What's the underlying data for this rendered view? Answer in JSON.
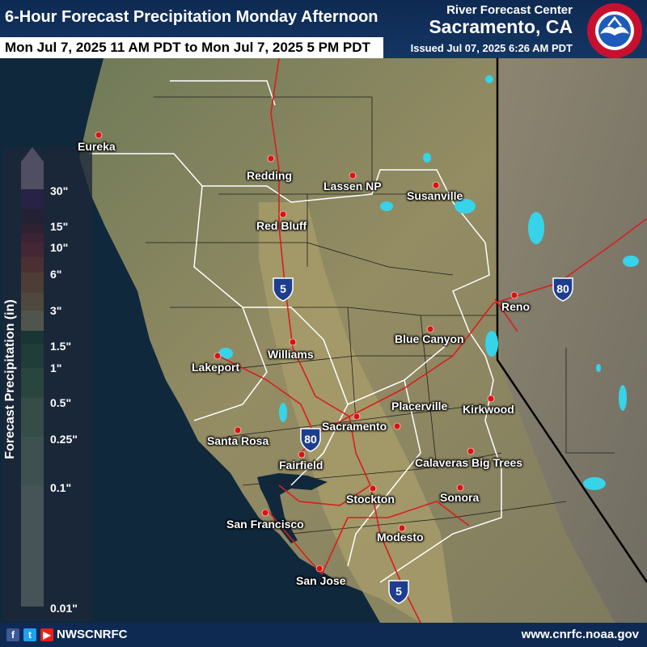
{
  "header": {
    "title": "6-Hour Forecast Precipitation Monday Afternoon",
    "valid_period": "Mon Jul 7, 2025 11 AM PDT to Mon Jul 7, 2025 5 PM PDT",
    "center_line1": "River Forecast Center",
    "center_line2": "Sacramento, CA",
    "issued": "Issued Jul 07, 2025 6:26 AM PDT",
    "logo_text": "NATIONAL WEATHER SERVICE"
  },
  "legend": {
    "title": "Forecast Precipitation (in)",
    "labels": [
      "30\"",
      "15\"",
      "10\"",
      "6\"",
      "3\"",
      "1.5\"",
      "1\"",
      "0.5\"",
      "0.25\"",
      "0.1\"",
      "0.01\""
    ],
    "colors": [
      "#fdd6f8",
      "#4b0f7a",
      "#3b0a2c",
      "#6e0a22",
      "#a4102a",
      "#d0202b",
      "#ef4a28",
      "#f88b2c",
      "#fbc14f",
      "#fdf59b",
      "#0f6b2b",
      "#2e8b3d",
      "#54ad55",
      "#8bcc80",
      "#b5e0a8",
      "#d4eec6"
    ],
    "max_value": null
  },
  "cities": [
    {
      "name": "Eureka"
    },
    {
      "name": "Redding"
    },
    {
      "name": "Lassen NP"
    },
    {
      "name": "Susanville"
    },
    {
      "name": "Red Bluff"
    },
    {
      "name": "Reno"
    },
    {
      "name": "Blue Canyon"
    },
    {
      "name": "Williams"
    },
    {
      "name": "Lakeport"
    },
    {
      "name": "Placerville"
    },
    {
      "name": "Kirkwood"
    },
    {
      "name": "Sacramento"
    },
    {
      "name": "Santa Rosa"
    },
    {
      "name": "Calaveras Big Trees"
    },
    {
      "name": "Fairfield"
    },
    {
      "name": "Sonora"
    },
    {
      "name": "Stockton"
    },
    {
      "name": "San Francisco"
    },
    {
      "name": "Modesto"
    },
    {
      "name": "San Jose"
    }
  ],
  "highways": [
    {
      "name": "Interstate 5 shield",
      "number": "5"
    },
    {
      "name": "Interstate 80 shield",
      "number": "80"
    },
    {
      "name": "Interstate 80 shield",
      "number": "80"
    },
    {
      "name": "Interstate 5 shield",
      "number": "5"
    }
  ],
  "footer": {
    "handle": "NWSCNRFC",
    "url": "www.cnrfc.noaa.gov",
    "social_icons": [
      "facebook-icon",
      "twitter-icon",
      "youtube-icon"
    ]
  },
  "colors": {
    "header_bg": "#0e2a52",
    "ocean": "#0f2233",
    "terrain": "#8a8561",
    "lakes": "#37d3e8",
    "roads": "#d81e1e",
    "city_dot": "#e01010"
  }
}
